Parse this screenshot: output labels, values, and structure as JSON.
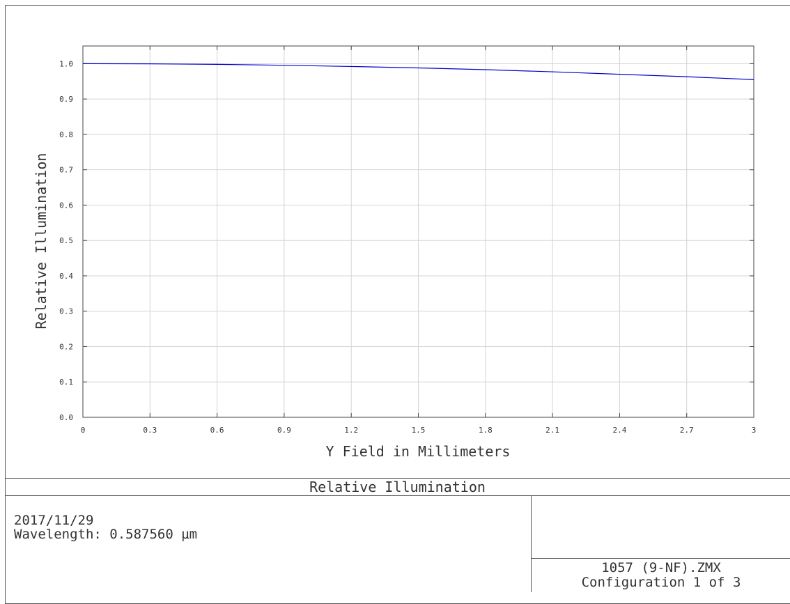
{
  "chart_data": {
    "type": "line",
    "title": "Relative Illumination",
    "xlabel": "Y Field in Millimeters",
    "ylabel": "Relative Illumination",
    "xlim": [
      0,
      3
    ],
    "ylim": [
      0,
      1.05
    ],
    "x_ticks": [
      "0",
      "0.3",
      "0.6",
      "0.9",
      "1.2",
      "1.5",
      "1.8",
      "2.1",
      "2.4",
      "2.7",
      "3"
    ],
    "y_ticks": [
      "0.0",
      "0.1",
      "0.2",
      "0.3",
      "0.4",
      "0.5",
      "0.6",
      "0.7",
      "0.8",
      "0.9",
      "1.0"
    ],
    "grid": true,
    "series": [
      {
        "color": "#0000cc",
        "x": [
          0,
          0.3,
          0.6,
          0.9,
          1.2,
          1.5,
          1.8,
          2.1,
          2.4,
          2.7,
          3.0
        ],
        "y": [
          1.0,
          0.9995,
          0.998,
          0.9955,
          0.992,
          0.988,
          0.983,
          0.977,
          0.97,
          0.963,
          0.955
        ]
      }
    ]
  },
  "info": {
    "date": "2017/11/29",
    "wavelength": "Wavelength: 0.587560 µm",
    "filename": "1057 (9-NF).ZMX",
    "configuration": "Configuration 1 of 3"
  }
}
